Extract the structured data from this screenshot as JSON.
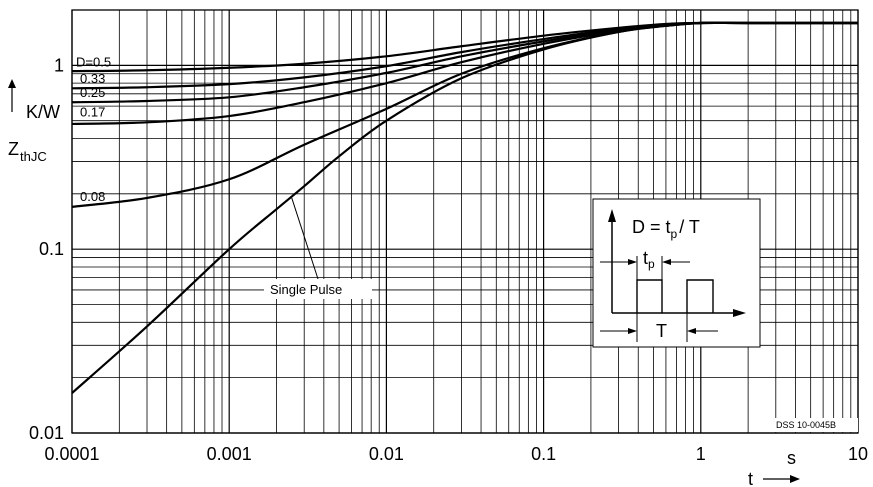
{
  "chart_data": {
    "type": "line",
    "x_scale": "log",
    "y_scale": "log",
    "xlim": [
      0.0001,
      10
    ],
    "ylim": [
      0.01,
      2
    ],
    "grid": true,
    "x_ticks": [
      "0.0001",
      "0.001",
      "0.01",
      "0.1",
      "1",
      "10"
    ],
    "y_ticks": [
      "0.01",
      "0.1",
      "1"
    ],
    "x_unit": "s",
    "x_symbol": "t",
    "y_unit": "K/W",
    "y_symbol": "Z",
    "y_symbol_sub": "thJC",
    "series": [
      {
        "name": "D=0.5",
        "label": "D=0.5",
        "x": [
          0.0001,
          0.0003,
          0.001,
          0.003,
          0.01,
          0.03,
          0.1,
          0.3,
          0.6,
          1,
          2,
          10
        ],
        "y": [
          0.93,
          0.94,
          0.97,
          1.02,
          1.12,
          1.27,
          1.45,
          1.6,
          1.68,
          1.7,
          1.7,
          1.7
        ]
      },
      {
        "name": "0.33",
        "label": "0.33",
        "x": [
          0.0001,
          0.0003,
          0.001,
          0.003,
          0.01,
          0.03,
          0.1,
          0.3,
          0.6,
          1,
          2,
          10
        ],
        "y": [
          0.75,
          0.76,
          0.79,
          0.86,
          0.99,
          1.18,
          1.39,
          1.58,
          1.67,
          1.7,
          1.7,
          1.7
        ]
      },
      {
        "name": "0.25",
        "label": "0.25",
        "x": [
          0.0001,
          0.0003,
          0.001,
          0.003,
          0.01,
          0.03,
          0.1,
          0.3,
          0.6,
          1,
          2,
          10
        ],
        "y": [
          0.63,
          0.64,
          0.67,
          0.76,
          0.91,
          1.12,
          1.35,
          1.56,
          1.66,
          1.7,
          1.7,
          1.7
        ]
      },
      {
        "name": "0.17",
        "label": "0.17",
        "x": [
          0.0001,
          0.0003,
          0.001,
          0.003,
          0.01,
          0.03,
          0.1,
          0.3,
          0.6,
          1,
          2,
          10
        ],
        "y": [
          0.48,
          0.49,
          0.53,
          0.63,
          0.8,
          1.04,
          1.31,
          1.54,
          1.65,
          1.7,
          1.7,
          1.7
        ]
      },
      {
        "name": "0.08",
        "label": "0.08",
        "x": [
          0.0001,
          0.0003,
          0.001,
          0.003,
          0.01,
          0.03,
          0.1,
          0.3,
          0.6,
          1,
          2,
          10
        ],
        "y": [
          0.17,
          0.19,
          0.24,
          0.37,
          0.58,
          0.9,
          1.24,
          1.52,
          1.64,
          1.7,
          1.7,
          1.7
        ]
      },
      {
        "name": "Single Pulse",
        "label": "Single Pulse",
        "x": [
          0.0001,
          0.0003,
          0.001,
          0.002,
          0.003,
          0.005,
          0.01,
          0.03,
          0.1,
          0.3,
          0.6,
          1,
          2,
          10
        ],
        "y": [
          0.0165,
          0.038,
          0.1,
          0.165,
          0.22,
          0.32,
          0.5,
          0.85,
          1.22,
          1.52,
          1.64,
          1.7,
          1.7,
          1.7
        ]
      }
    ],
    "inset": {
      "formula_lhs": "D = t",
      "formula_sub": "p",
      "formula_rhs": "/ T",
      "tp_label": "t",
      "tp_sub": "p",
      "T_label": "T"
    },
    "doc_code": "DSS 10-0045B"
  }
}
